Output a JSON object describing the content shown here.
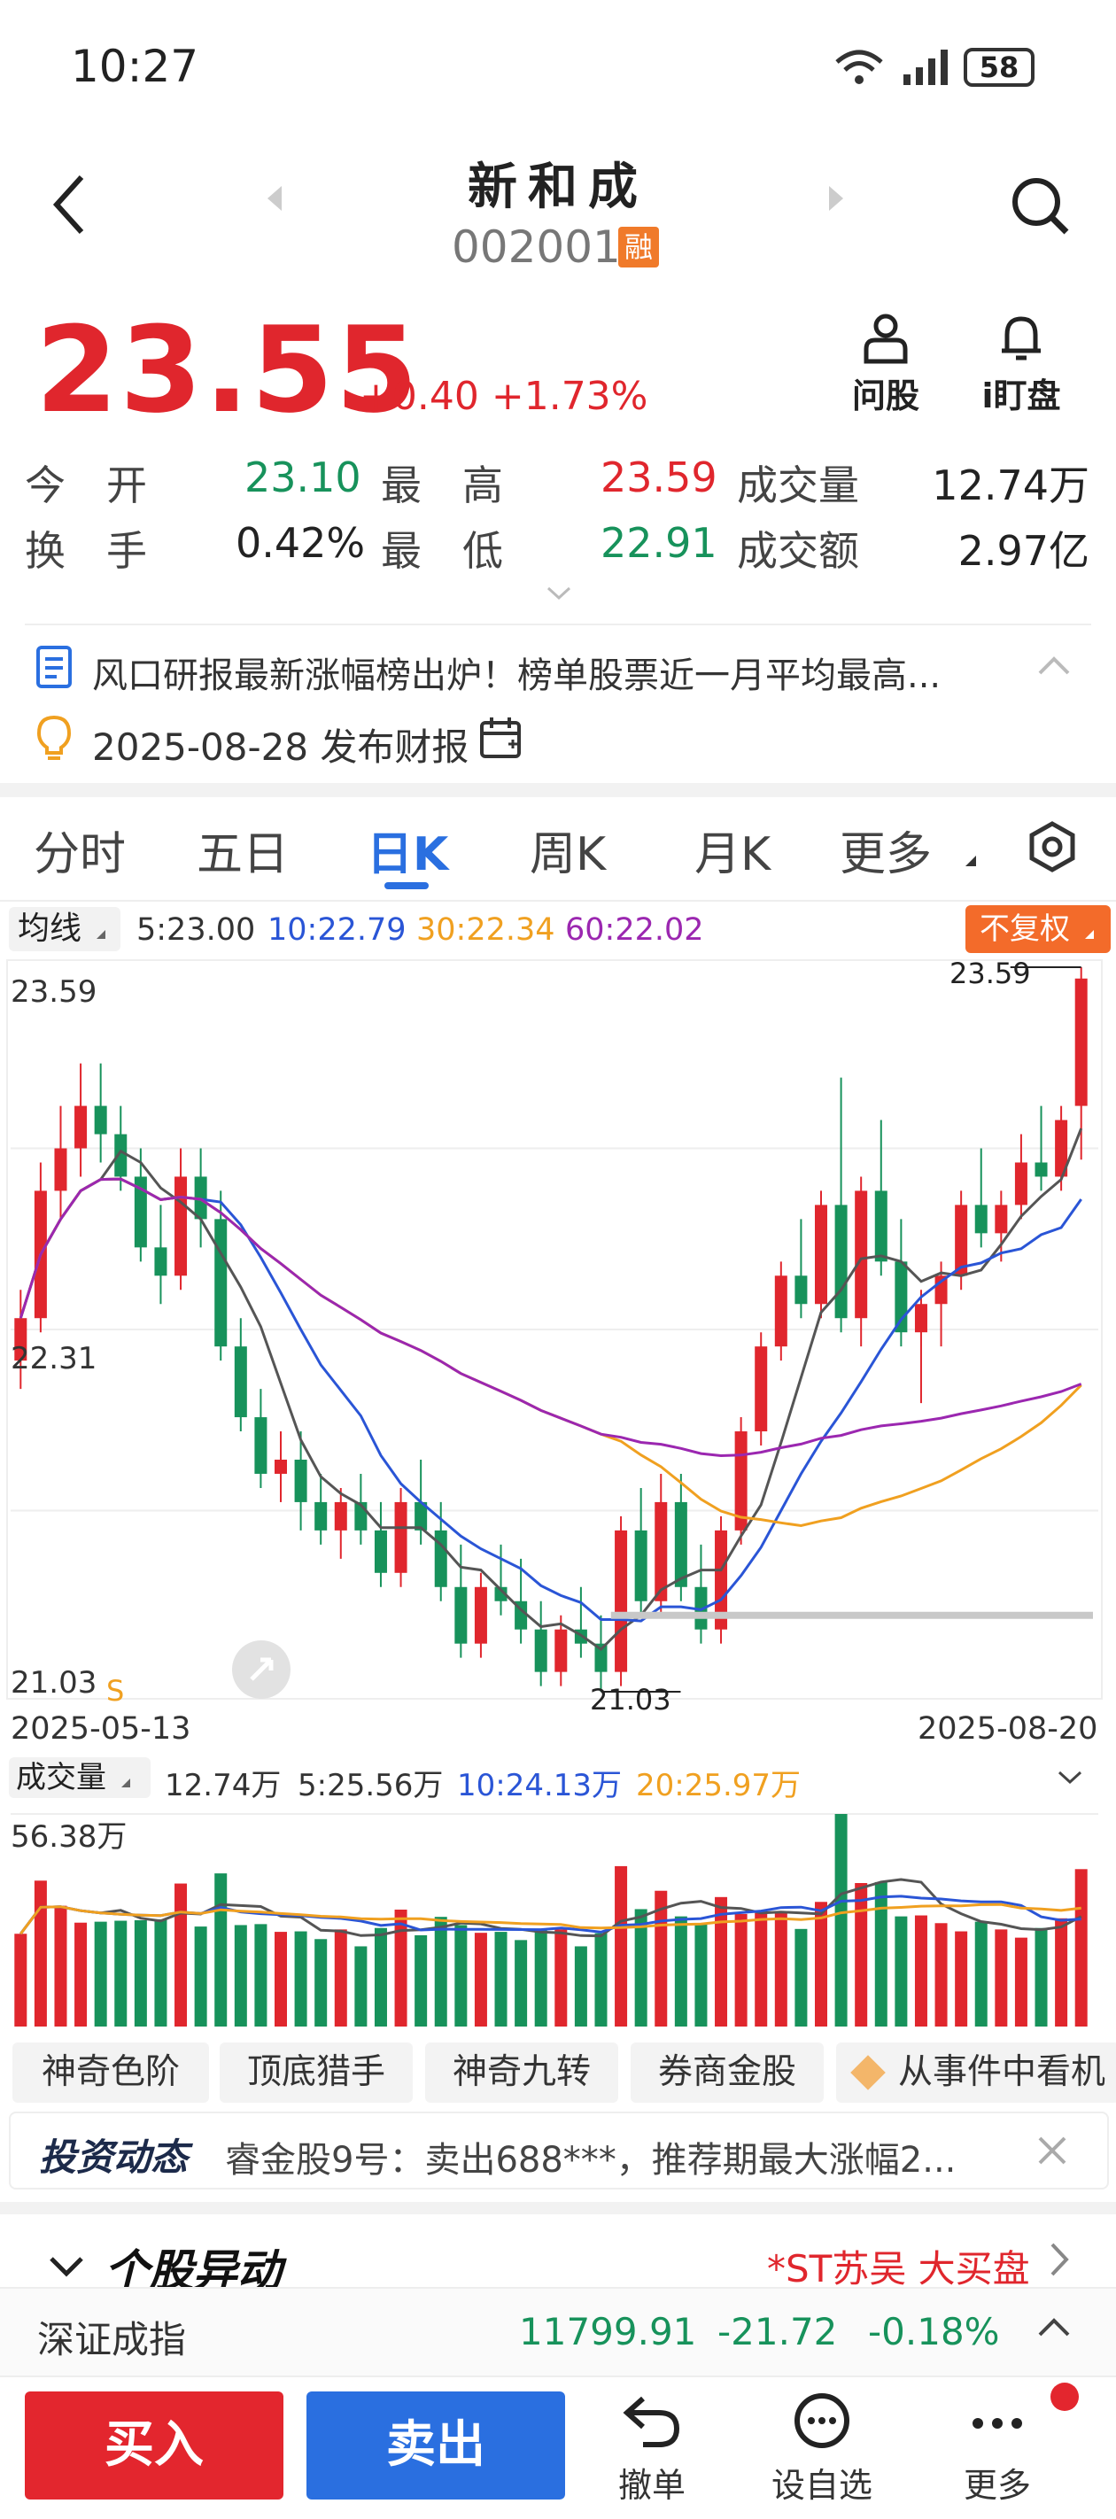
{
  "status_bar": {
    "time": "10:27",
    "battery": "58"
  },
  "header": {
    "title": "新和成",
    "code": "002001",
    "rong_badge": "融"
  },
  "quote": {
    "price": "23.55",
    "change": "+0.40",
    "change_pct": "+1.73%",
    "ask_label": "问股",
    "watch_label": "i盯盘"
  },
  "stats": {
    "open_label": "今　开",
    "open": "23.10",
    "high_label": "最　高",
    "high": "23.59",
    "vol_label": "成交量",
    "vol": "12.74万",
    "turnover_label": "换　手",
    "turnover": "0.42%",
    "low_label": "最　低",
    "low": "22.91",
    "amount_label": "成交额",
    "amount": "2.97亿"
  },
  "news": {
    "headline": "风口研报最新涨幅榜出炉！榜单股票近一月平均最高...",
    "report_date": "2025-08-28 发布财报"
  },
  "tabs": [
    "分时",
    "五日",
    "日K",
    "周K",
    "月K",
    "更多"
  ],
  "active_tab": 2,
  "ma": {
    "label": "均线",
    "ma5": "5:23.00",
    "ma10": "10:22.79",
    "ma30": "30:22.34",
    "ma60": "60:22.02",
    "restore_label": "不复权"
  },
  "kline": {
    "y_top": "23.59",
    "y_mid": "22.31",
    "y_bottom": "21.03",
    "s_marker": "S",
    "max_annot": "23.59",
    "min_annot": "21.03",
    "date_start": "2025-05-13",
    "date_end": "2025-08-20"
  },
  "volume": {
    "label": "成交量",
    "v": "12.74万",
    "v5": "5:25.56万",
    "v10": "10:24.13万",
    "v20": "20:25.97万",
    "y_max": "56.38万"
  },
  "chips": [
    "神奇色阶",
    "顶底猎手",
    "神奇九转",
    "券商金股",
    "从事件中看机"
  ],
  "dynamics": {
    "logo": "投资动态",
    "text": "睿金股9号：卖出688***，推荐期最大涨幅2..."
  },
  "abnormal": {
    "title": "个股异动",
    "link": "*ST苏吴 大买盘"
  },
  "index_bar": {
    "name": "深证成指",
    "value": "11799.91",
    "change": "-21.72",
    "pct": "-0.18%"
  },
  "bottom": {
    "buy": "买入",
    "sell": "卖出",
    "cancel": "撤单",
    "watchlist": "设自选",
    "more": "更多"
  },
  "colors": {
    "up": "#e0262d",
    "down": "#17925b",
    "accent": "#2a6fe0",
    "ma10": "#2a55d6",
    "ma30": "#f0a020",
    "ma60": "#9b27b0"
  },
  "chart_data": {
    "type": "candlestick",
    "date_range": [
      "2025-05-13",
      "2025-08-20"
    ],
    "price_range": [
      21.03,
      23.59
    ],
    "ohlc": [
      [
        22.2,
        22.45,
        22.1,
        22.35
      ],
      [
        22.35,
        22.9,
        22.3,
        22.8
      ],
      [
        22.8,
        23.1,
        22.7,
        22.95
      ],
      [
        22.95,
        23.25,
        22.85,
        23.1
      ],
      [
        23.1,
        23.25,
        22.9,
        23.0
      ],
      [
        23.0,
        23.1,
        22.8,
        22.85
      ],
      [
        22.85,
        22.95,
        22.55,
        22.6
      ],
      [
        22.6,
        22.75,
        22.4,
        22.5
      ],
      [
        22.5,
        22.95,
        22.45,
        22.85
      ],
      [
        22.85,
        22.95,
        22.6,
        22.7
      ],
      [
        22.7,
        22.8,
        22.2,
        22.25
      ],
      [
        22.25,
        22.35,
        21.95,
        22.0
      ],
      [
        22.0,
        22.1,
        21.75,
        21.8
      ],
      [
        21.8,
        21.95,
        21.7,
        21.85
      ],
      [
        21.85,
        21.95,
        21.6,
        21.7
      ],
      [
        21.7,
        21.8,
        21.55,
        21.6
      ],
      [
        21.6,
        21.75,
        21.5,
        21.7
      ],
      [
        21.7,
        21.8,
        21.55,
        21.6
      ],
      [
        21.6,
        21.7,
        21.4,
        21.45
      ],
      [
        21.45,
        21.75,
        21.4,
        21.7
      ],
      [
        21.7,
        21.85,
        21.55,
        21.6
      ],
      [
        21.6,
        21.7,
        21.35,
        21.4
      ],
      [
        21.4,
        21.55,
        21.15,
        21.2
      ],
      [
        21.2,
        21.45,
        21.15,
        21.4
      ],
      [
        21.4,
        21.55,
        21.3,
        21.35
      ],
      [
        21.35,
        21.5,
        21.2,
        21.25
      ],
      [
        21.25,
        21.35,
        21.05,
        21.1
      ],
      [
        21.1,
        21.3,
        21.05,
        21.25
      ],
      [
        21.25,
        21.4,
        21.15,
        21.2
      ],
      [
        21.2,
        21.3,
        21.03,
        21.1
      ],
      [
        21.1,
        21.65,
        21.05,
        21.6
      ],
      [
        21.6,
        21.75,
        21.3,
        21.35
      ],
      [
        21.35,
        21.8,
        21.3,
        21.7
      ],
      [
        21.7,
        21.8,
        21.35,
        21.4
      ],
      [
        21.4,
        21.55,
        21.2,
        21.25
      ],
      [
        21.25,
        21.65,
        21.2,
        21.6
      ],
      [
        21.6,
        22.0,
        21.55,
        21.95
      ],
      [
        21.95,
        22.3,
        21.9,
        22.25
      ],
      [
        22.25,
        22.55,
        22.2,
        22.5
      ],
      [
        22.5,
        22.7,
        22.35,
        22.4
      ],
      [
        22.4,
        22.8,
        22.35,
        22.75
      ],
      [
        22.75,
        23.2,
        22.3,
        22.35
      ],
      [
        22.35,
        22.85,
        22.25,
        22.8
      ],
      [
        22.8,
        23.05,
        22.5,
        22.55
      ],
      [
        22.55,
        22.7,
        22.25,
        22.3
      ],
      [
        22.3,
        22.45,
        22.05,
        22.4
      ],
      [
        22.4,
        22.55,
        22.25,
        22.5
      ],
      [
        22.5,
        22.8,
        22.45,
        22.75
      ],
      [
        22.75,
        22.95,
        22.6,
        22.65
      ],
      [
        22.65,
        22.8,
        22.55,
        22.75
      ],
      [
        22.75,
        23.0,
        22.7,
        22.9
      ],
      [
        22.9,
        23.1,
        22.8,
        22.85
      ],
      [
        22.85,
        23.1,
        22.8,
        23.05
      ],
      [
        23.1,
        23.59,
        22.91,
        23.55
      ]
    ],
    "volume_max": "56.38万"
  }
}
